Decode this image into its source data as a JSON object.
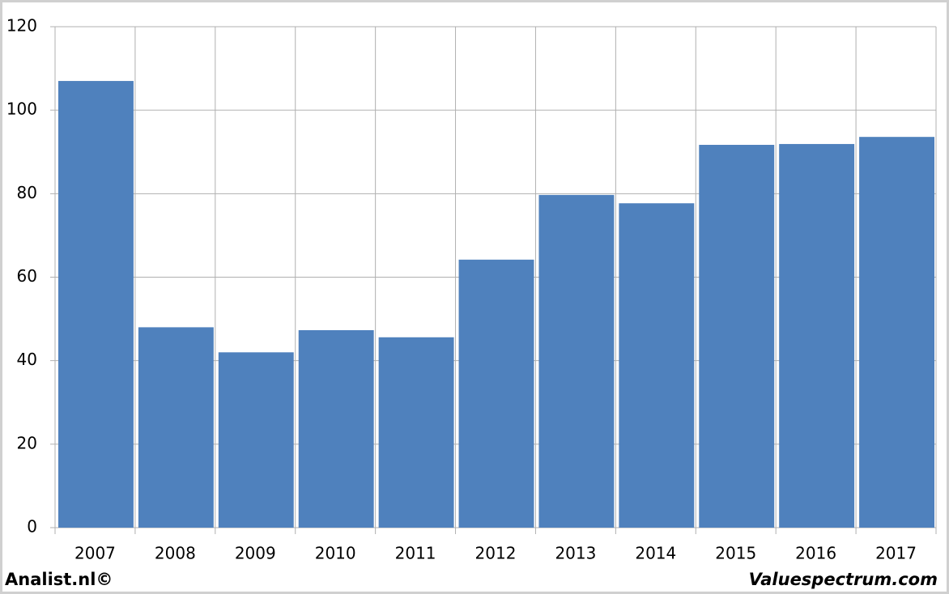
{
  "chart_data": {
    "type": "bar",
    "categories": [
      "2007",
      "2008",
      "2009",
      "2010",
      "2011",
      "2012",
      "2013",
      "2014",
      "2015",
      "2016",
      "2017"
    ],
    "values": [
      107,
      48,
      42,
      47.3,
      45.6,
      64.2,
      79.7,
      77.7,
      91.7,
      91.9,
      93.6
    ],
    "color": "#4f81bd",
    "ylim": [
      0,
      120
    ],
    "yticks": [
      0,
      20,
      40,
      60,
      80,
      100,
      120
    ],
    "grid": true
  },
  "footer": {
    "left": "Analist.nl©",
    "right": "Valuespectrum.com"
  }
}
